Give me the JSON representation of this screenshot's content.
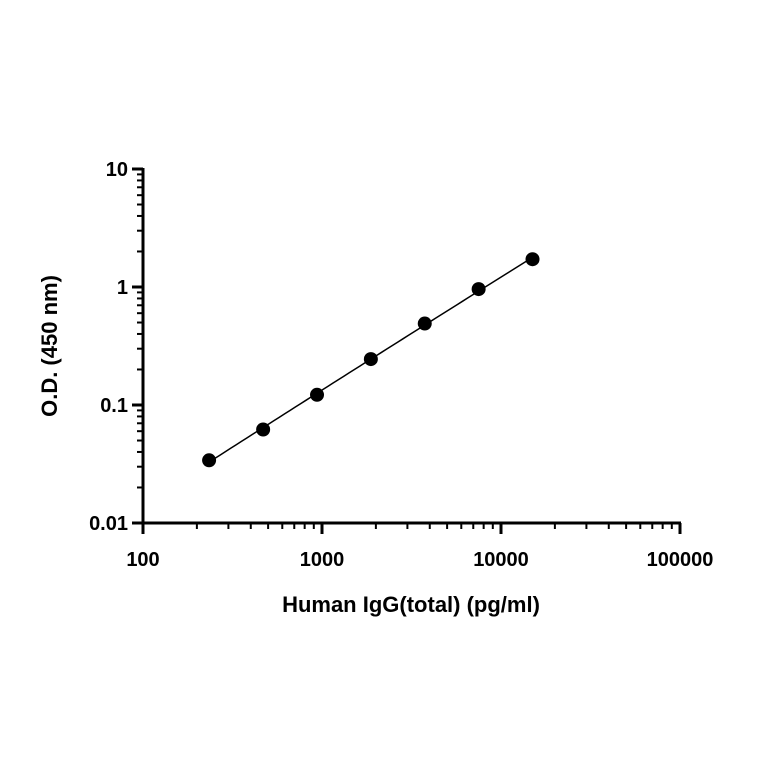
{
  "chart_data": {
    "type": "scatter",
    "title": "",
    "xlabel": "Human IgG(total) (pg/ml)",
    "ylabel": "O.D. (450 nm)",
    "xscale": "log",
    "yscale": "log",
    "xlim": [
      100,
      100000
    ],
    "ylim": [
      0.01,
      10
    ],
    "x_tick_labels": [
      "100",
      "1000",
      "10000",
      "100000"
    ],
    "y_tick_labels": [
      "0.01",
      "0.1",
      "1",
      "10"
    ],
    "grid": false,
    "legend": "none",
    "colors": {
      "marker": "#000000",
      "line": "#000000",
      "axis": "#000000"
    },
    "series": [
      {
        "x": [
          234,
          469,
          938,
          1875,
          3750,
          7500,
          15000
        ],
        "y": [
          0.034,
          0.062,
          0.122,
          0.245,
          0.49,
          0.96,
          1.72
        ],
        "fit_line": true
      }
    ]
  }
}
